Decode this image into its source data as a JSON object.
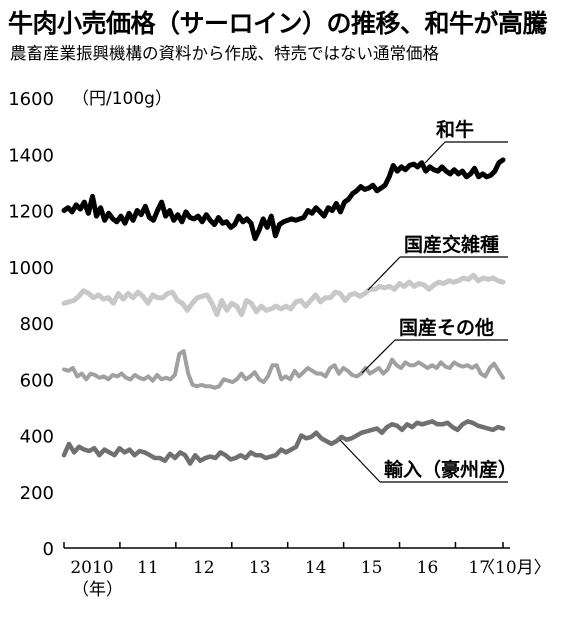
{
  "header": {
    "title": "牛肉小売価格（サーロイン）の推移、和牛が高騰",
    "subtitle": "農畜産業振興機構の資料から作成、特売ではない通常価格"
  },
  "chart_data": {
    "type": "line",
    "unit": "（円/100g）",
    "xlabel_unit": "（年）",
    "x_last_note": "〈10月〉",
    "ylim": [
      0,
      1600
    ],
    "yticks": [
      0,
      200,
      400,
      600,
      800,
      1000,
      1200,
      1400,
      1600
    ],
    "xlim": [
      2010.0,
      2017.85
    ],
    "x_tick_labels": [
      "2010",
      "11",
      "12",
      "13",
      "14",
      "15",
      "16",
      "17"
    ],
    "series": [
      {
        "name": "和牛",
        "color": "#000000",
        "values": [
          1200,
          1210,
          1195,
          1220,
          1205,
          1230,
          1190,
          1250,
          1180,
          1210,
          1165,
          1190,
          1170,
          1160,
          1180,
          1155,
          1190,
          1165,
          1200,
          1185,
          1215,
          1175,
          1165,
          1200,
          1230,
          1180,
          1200,
          1165,
          1185,
          1160,
          1195,
          1175,
          1170,
          1180,
          1160,
          1185,
          1165,
          1150,
          1175,
          1155,
          1160,
          1140,
          1150,
          1180,
          1160,
          1170,
          1155,
          1100,
          1130,
          1170,
          1140,
          1180,
          1110,
          1150,
          1160,
          1165,
          1170,
          1165,
          1170,
          1175,
          1200,
          1190,
          1210,
          1195,
          1180,
          1210,
          1200,
          1225,
          1195,
          1230,
          1240,
          1260,
          1270,
          1285,
          1275,
          1280,
          1290,
          1270,
          1280,
          1290,
          1320,
          1360,
          1340,
          1355,
          1345,
          1360,
          1365,
          1355,
          1370,
          1340,
          1355,
          1345,
          1340,
          1355,
          1340,
          1330,
          1345,
          1330,
          1340,
          1320,
          1330,
          1350,
          1320,
          1330,
          1320,
          1325,
          1340,
          1370,
          1380
        ]
      },
      {
        "name": "国産交雑種",
        "color": "#c8c8c8",
        "values": [
          870,
          875,
          880,
          895,
          915,
          905,
          890,
          900,
          885,
          890,
          870,
          905,
          885,
          905,
          890,
          910,
          895,
          870,
          900,
          890,
          890,
          905,
          910,
          880,
          870,
          845,
          870,
          890,
          895,
          900,
          870,
          830,
          880,
          845,
          870,
          860,
          830,
          880,
          870,
          840,
          860,
          845,
          850,
          860,
          850,
          860,
          850,
          875,
          880,
          860,
          880,
          900,
          875,
          890,
          890,
          910,
          905,
          880,
          900,
          905,
          895,
          905,
          920,
          920,
          930,
          925,
          930,
          920,
          940,
          930,
          945,
          930,
          940,
          935,
          920,
          935,
          945,
          940,
          950,
          945,
          950,
          960,
          955,
          970,
          950,
          960,
          955,
          960,
          950,
          945
        ]
      },
      {
        "name": "国産その他",
        "color": "#a0a0a0",
        "values": [
          635,
          630,
          640,
          610,
          620,
          600,
          620,
          615,
          605,
          610,
          600,
          615,
          610,
          620,
          605,
          600,
          615,
          605,
          600,
          610,
          595,
          615,
          600,
          605,
          600,
          615,
          690,
          700,
          620,
          580,
          575,
          580,
          575,
          575,
          570,
          575,
          600,
          595,
          590,
          600,
          620,
          600,
          610,
          625,
          600,
          590,
          610,
          650,
          650,
          600,
          610,
          600,
          630,
          610,
          625,
          640,
          630,
          620,
          620,
          610,
          640,
          650,
          620,
          640,
          630,
          615,
          610,
          620,
          640,
          620,
          630,
          640,
          620,
          635,
          670,
          650,
          640,
          660,
          650,
          650,
          660,
          650,
          640,
          650,
          640,
          660,
          645,
          640,
          660,
          650,
          645,
          650,
          640,
          650,
          620,
          610,
          640,
          655,
          630,
          605
        ]
      },
      {
        "name": "輸入（豪州産）",
        "color": "#707070",
        "values": [
          330,
          370,
          340,
          360,
          350,
          345,
          355,
          330,
          350,
          340,
          330,
          355,
          340,
          350,
          330,
          345,
          340,
          330,
          320,
          320,
          310,
          335,
          320,
          340,
          330,
          300,
          330,
          310,
          320,
          325,
          320,
          340,
          330,
          315,
          320,
          330,
          320,
          340,
          330,
          330,
          320,
          325,
          330,
          350,
          340,
          350,
          360,
          400,
          390,
          395,
          410,
          390,
          380,
          370,
          380,
          395,
          385,
          390,
          400,
          410,
          415,
          420,
          425,
          410,
          430,
          440,
          435,
          420,
          440,
          430,
          445,
          440,
          445,
          450,
          440,
          440,
          445,
          430,
          420,
          440,
          450,
          445,
          435,
          430,
          425,
          420,
          430,
          425
        ]
      }
    ],
    "callouts": [
      {
        "series": "和牛",
        "text": "和牛"
      },
      {
        "series": "国産交雑種",
        "text": "国産交雑種"
      },
      {
        "series": "国産その他",
        "text": "国産その他"
      },
      {
        "series": "輸入（豪州産）",
        "text": "輸入（豪州産）"
      }
    ]
  }
}
